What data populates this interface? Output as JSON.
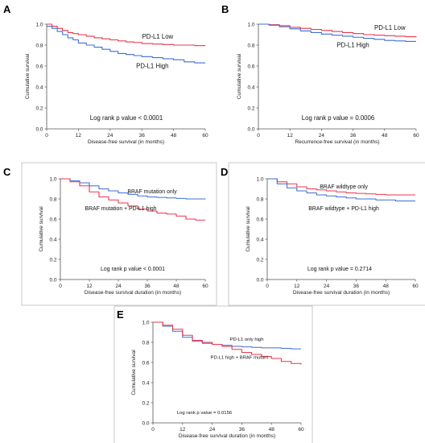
{
  "colors": {
    "red": "#e8374d",
    "blue": "#3f6fd6"
  },
  "chart_data": [
    {
      "panel": "A",
      "type": "line",
      "xlabel": "Disease-free survival (in months)",
      "ylabel": "Cumulative survival",
      "xlim": [
        0,
        60
      ],
      "ylim": [
        0,
        1.0
      ],
      "xticks": [
        "0",
        "12",
        "24",
        "36",
        "48",
        "60"
      ],
      "yticks": [
        "0.0",
        "0.2",
        "0.4",
        "0.6",
        "0.8",
        "1.0"
      ],
      "pvalue_text": "Log rank p value < 0.0001",
      "series": [
        {
          "name": "PD-L1 Low",
          "color": "red",
          "x": [
            0,
            2,
            4,
            6,
            8,
            10,
            12,
            15,
            18,
            21,
            24,
            27,
            30,
            33,
            36,
            40,
            44,
            48,
            52,
            56,
            60
          ],
          "y": [
            1.0,
            0.98,
            0.96,
            0.94,
            0.92,
            0.91,
            0.9,
            0.885,
            0.87,
            0.86,
            0.85,
            0.84,
            0.83,
            0.825,
            0.815,
            0.81,
            0.805,
            0.8,
            0.8,
            0.795,
            0.795
          ]
        },
        {
          "name": "PD-L1 High",
          "color": "blue",
          "x": [
            0,
            2,
            4,
            6,
            8,
            10,
            12,
            15,
            18,
            21,
            24,
            27,
            30,
            33,
            36,
            40,
            44,
            48,
            52,
            56,
            60
          ],
          "y": [
            0.98,
            0.96,
            0.93,
            0.9,
            0.87,
            0.85,
            0.82,
            0.8,
            0.78,
            0.76,
            0.74,
            0.72,
            0.71,
            0.7,
            0.69,
            0.68,
            0.67,
            0.66,
            0.64,
            0.63,
            0.63
          ]
        }
      ],
      "labels": [
        {
          "text": "PD-L1 Low",
          "x": 42,
          "y": 0.86
        },
        {
          "text": "PD-L1 High",
          "x": 40,
          "y": 0.58
        }
      ]
    },
    {
      "panel": "B",
      "type": "line",
      "xlabel": "Recurrence-free survival (in months)",
      "ylabel": "Cumulative survival",
      "xlim": [
        0,
        60
      ],
      "ylim": [
        0,
        1.0
      ],
      "xticks": [
        "0",
        "12",
        "24",
        "36",
        "48",
        "60"
      ],
      "yticks": [
        "0.0",
        "0.2",
        "0.4",
        "0.6",
        "0.8",
        "1.0"
      ],
      "pvalue_text": "Log rank p value = 0.0006",
      "series": [
        {
          "name": "PD-L1 Low",
          "color": "red",
          "x": [
            0,
            4,
            8,
            12,
            16,
            20,
            24,
            28,
            32,
            36,
            40,
            44,
            48,
            52,
            56,
            60
          ],
          "y": [
            1.0,
            0.995,
            0.985,
            0.97,
            0.96,
            0.95,
            0.94,
            0.93,
            0.92,
            0.91,
            0.9,
            0.895,
            0.89,
            0.885,
            0.88,
            0.875
          ]
        },
        {
          "name": "PD-L1 High",
          "color": "blue",
          "x": [
            0,
            4,
            8,
            12,
            16,
            20,
            24,
            28,
            32,
            36,
            40,
            44,
            48,
            52,
            56,
            60
          ],
          "y": [
            1.0,
            0.99,
            0.975,
            0.955,
            0.935,
            0.92,
            0.905,
            0.895,
            0.885,
            0.875,
            0.865,
            0.855,
            0.845,
            0.84,
            0.835,
            0.835
          ]
        }
      ],
      "labels": [
        {
          "text": "PD-L1 Low",
          "x": 50,
          "y": 0.945
        },
        {
          "text": "PD-L1 High",
          "x": 36,
          "y": 0.78
        }
      ]
    },
    {
      "panel": "C",
      "type": "line",
      "xlabel": "Disease-free survival duration (in months)",
      "ylabel": "Cumulative survival",
      "xlim": [
        0,
        60
      ],
      "ylim": [
        0,
        1.0
      ],
      "xticks": [
        "0",
        "12",
        "24",
        "36",
        "48",
        "60"
      ],
      "yticks": [
        "0.0",
        "0.2",
        "0.4",
        "0.6",
        "0.8",
        "1.0"
      ],
      "pvalue_text": "Log rank p value < 0.0001",
      "series": [
        {
          "name": "BRAF mutation only",
          "color": "blue",
          "x": [
            0,
            4,
            8,
            12,
            16,
            20,
            24,
            28,
            32,
            36,
            40,
            44,
            48,
            52,
            56,
            60
          ],
          "y": [
            1.0,
            0.98,
            0.96,
            0.93,
            0.9,
            0.88,
            0.86,
            0.845,
            0.83,
            0.82,
            0.815,
            0.81,
            0.805,
            0.8,
            0.8,
            0.795
          ]
        },
        {
          "name": "BRAF mutation + PD-L1 high",
          "color": "red",
          "x": [
            0,
            4,
            8,
            12,
            16,
            20,
            24,
            28,
            32,
            36,
            40,
            44,
            48,
            52,
            56,
            60
          ],
          "y": [
            1.0,
            0.97,
            0.93,
            0.87,
            0.82,
            0.79,
            0.76,
            0.73,
            0.7,
            0.68,
            0.66,
            0.65,
            0.63,
            0.6,
            0.59,
            0.59
          ]
        }
      ],
      "labels": [
        {
          "text": "BRAF mutation only",
          "x": 38,
          "y": 0.855
        },
        {
          "text": "BRAF mutation + PD-L1 high",
          "x": 25,
          "y": 0.69
        }
      ]
    },
    {
      "panel": "D",
      "type": "line",
      "xlabel": "Disease-free survival duration (in months)",
      "ylabel": "Cumulative survival",
      "xlim": [
        0,
        60
      ],
      "ylim": [
        0,
        1.0
      ],
      "xticks": [
        "0",
        "12",
        "24",
        "36",
        "48",
        "60"
      ],
      "yticks": [
        "0.0",
        "0.2",
        "0.4",
        "0.6",
        "0.8",
        "1.0"
      ],
      "pvalue_text": "Log rank p value = 0.2714",
      "series": [
        {
          "name": "BRAF wildtype only",
          "color": "red",
          "x": [
            0,
            4,
            8,
            12,
            16,
            20,
            24,
            28,
            32,
            36,
            40,
            44,
            48,
            52,
            56,
            60
          ],
          "y": [
            1.0,
            0.97,
            0.95,
            0.92,
            0.9,
            0.89,
            0.88,
            0.87,
            0.86,
            0.855,
            0.85,
            0.845,
            0.84,
            0.84,
            0.84,
            0.84
          ]
        },
        {
          "name": "BRAF wildtype + PD-L1 high",
          "color": "blue",
          "x": [
            0,
            4,
            8,
            12,
            16,
            20,
            24,
            28,
            32,
            36,
            40,
            44,
            48,
            52,
            56,
            60
          ],
          "y": [
            1.0,
            0.95,
            0.91,
            0.88,
            0.86,
            0.84,
            0.83,
            0.82,
            0.81,
            0.8,
            0.8,
            0.79,
            0.79,
            0.78,
            0.78,
            0.78
          ]
        }
      ],
      "labels": [
        {
          "text": "BRAF wildtype only",
          "x": 31,
          "y": 0.905
        },
        {
          "text": "BRAF wildtype + PD-L1 high",
          "x": 31,
          "y": 0.69
        }
      ]
    },
    {
      "panel": "E",
      "type": "line",
      "xlabel": "Disease-free survival duration (in months)",
      "ylabel": "Cumulative survival",
      "xlim": [
        0,
        60
      ],
      "ylim": [
        0,
        1.0
      ],
      "xticks": [
        "0",
        "12",
        "24",
        "36",
        "48",
        "60"
      ],
      "yticks": [
        "0.0",
        "0.2",
        "0.4",
        "0.6",
        "0.8",
        "1.0"
      ],
      "pvalue_text": "Log rank p value = 0.0156",
      "series": [
        {
          "name": "PD-L1 only high",
          "color": "blue",
          "x": [
            0,
            4,
            8,
            12,
            16,
            20,
            24,
            28,
            32,
            36,
            40,
            44,
            48,
            52,
            56,
            60
          ],
          "y": [
            1.0,
            0.96,
            0.91,
            0.85,
            0.81,
            0.79,
            0.78,
            0.77,
            0.76,
            0.755,
            0.75,
            0.745,
            0.745,
            0.74,
            0.735,
            0.735
          ]
        },
        {
          "name": "PD-L1 high + BRAF mutant",
          "color": "red",
          "x": [
            0,
            4,
            8,
            12,
            16,
            20,
            24,
            28,
            32,
            36,
            40,
            44,
            48,
            52,
            56,
            60
          ],
          "y": [
            1.0,
            0.97,
            0.93,
            0.87,
            0.82,
            0.8,
            0.78,
            0.76,
            0.73,
            0.7,
            0.68,
            0.66,
            0.64,
            0.61,
            0.59,
            0.58
          ]
        }
      ],
      "labels": [
        {
          "text": "PD-L1 only high",
          "x": 38,
          "y": 0.815
        },
        {
          "text": "PD-L1 high + BRAF mutant",
          "x": 35,
          "y": 0.635
        }
      ]
    }
  ]
}
